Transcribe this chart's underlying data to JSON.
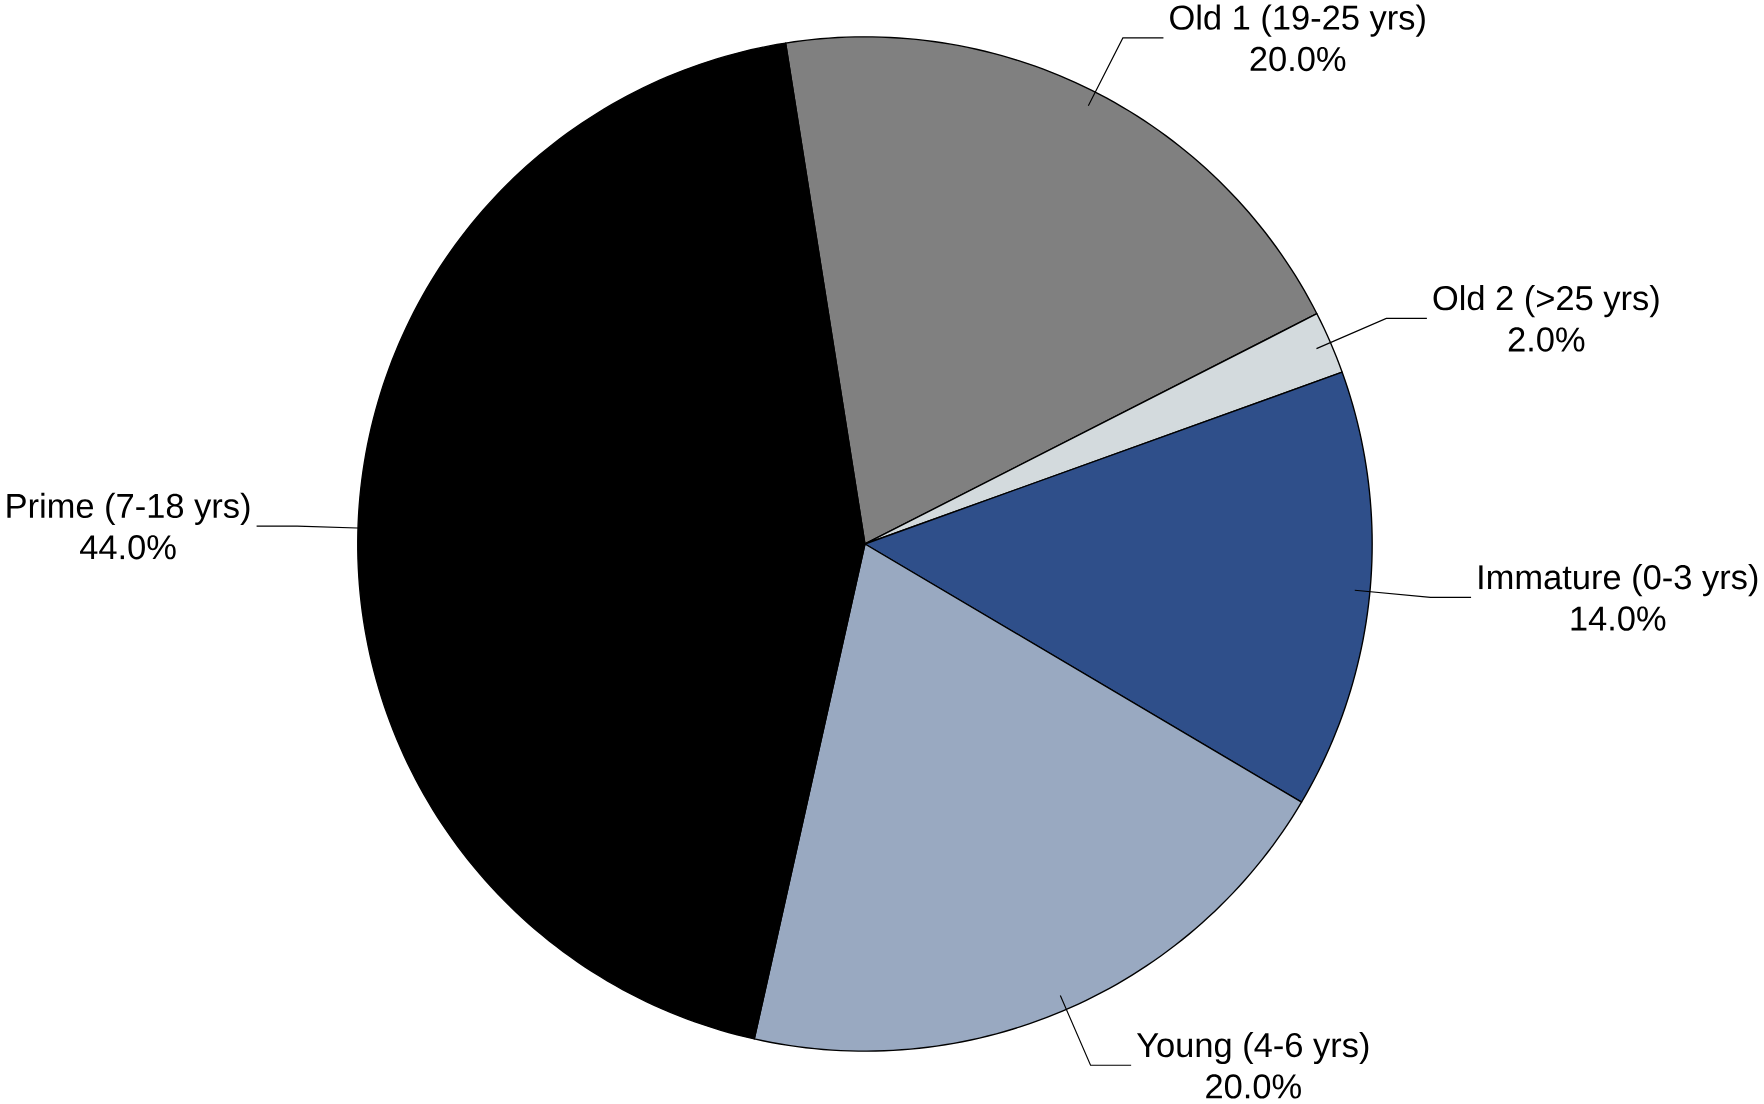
{
  "chart_data": {
    "type": "pie",
    "categories": [
      "Old 1 (19-25 yrs)",
      "Old 2 (>25 yrs)",
      "Immature (0-3 yrs)",
      "Young (4-6 yrs)",
      "Prime (7-18 yrs)"
    ],
    "values": [
      20.0,
      2.0,
      14.0,
      20.0,
      44.0
    ],
    "value_labels": [
      "20.0%",
      "2.0%",
      "14.0%",
      "20.0%",
      "44.0%"
    ],
    "colors": [
      "#808080",
      "#d3dadd",
      "#2f4f8a",
      "#99a9c1",
      "#000000"
    ]
  }
}
